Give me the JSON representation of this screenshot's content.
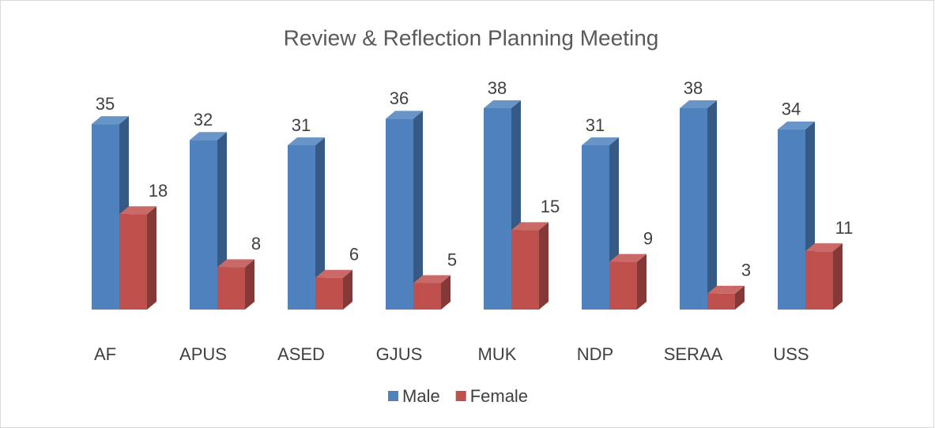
{
  "chart_data": {
    "type": "bar3d",
    "title": "Review & Reflection Planning Meeting",
    "categories": [
      "AF",
      "APUS",
      "ASED",
      "GJUS",
      "MUK",
      "NDP",
      "SERAA",
      "USS"
    ],
    "series": [
      {
        "name": "Male",
        "color": "#4f81bd",
        "values": [
          35,
          32,
          31,
          36,
          38,
          31,
          38,
          34
        ]
      },
      {
        "name": "Female",
        "color": "#c0504d",
        "values": [
          18,
          8,
          6,
          5,
          15,
          9,
          3,
          11
        ]
      }
    ],
    "legend": "bottom"
  }
}
